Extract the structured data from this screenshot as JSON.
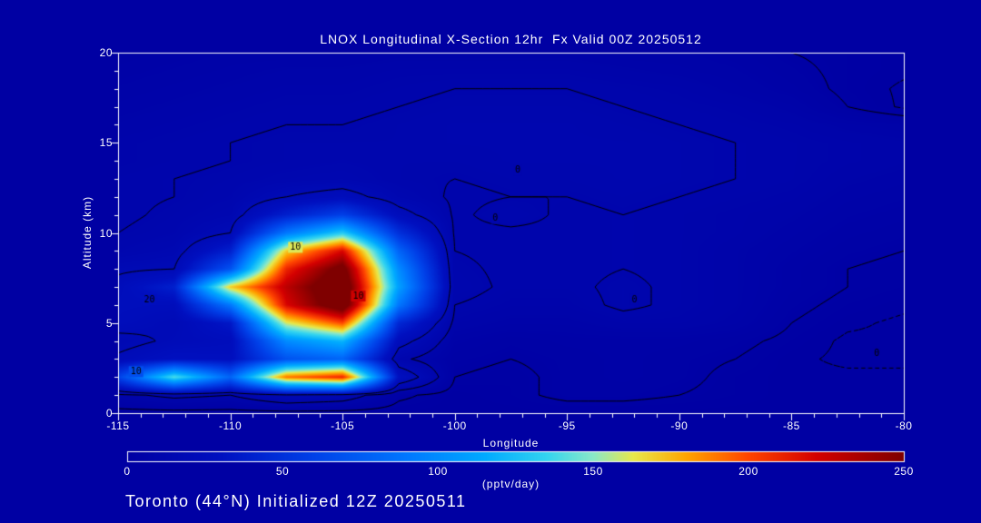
{
  "colors": {
    "background": "#0000a3",
    "frame": "#ffffff",
    "text": "#ffffff",
    "contour": "#000000"
  },
  "chart_data": {
    "type": "heatmap",
    "title": "LNOX Longitudinal X-Section 12hr  Fx Valid 00Z 20250512",
    "xlabel": "Longitude",
    "ylabel": "Altitude (km)",
    "caption": "Toronto (44°N) Initialized 12Z 20250511",
    "xlim": [
      -115,
      -80
    ],
    "ylim": [
      0,
      20
    ],
    "x_ticks": [
      -115,
      -110,
      -105,
      -100,
      -95,
      -90,
      -85,
      -80
    ],
    "y_ticks": [
      0,
      5,
      10,
      15,
      20
    ],
    "lon": [
      -115,
      -112.5,
      -110,
      -107.5,
      -105,
      -102.5,
      -100,
      -97.5,
      -95,
      -92.5,
      -90,
      -87.5,
      -85,
      -82.5,
      -80
    ],
    "alt": [
      0,
      1,
      2,
      3,
      4,
      5,
      6,
      7,
      8,
      9,
      10,
      11,
      12,
      13,
      14,
      15,
      16,
      17,
      18,
      19,
      20
    ],
    "values": [
      [
        0,
        0,
        0,
        0,
        0,
        0,
        0,
        0,
        0,
        0,
        0,
        0,
        0,
        0,
        0
      ],
      [
        8,
        12,
        10,
        18,
        15,
        3,
        0,
        1,
        3,
        3,
        2,
        1,
        0,
        0,
        0
      ],
      [
        60,
        140,
        80,
        190,
        210,
        30,
        2,
        1,
        3,
        4,
        3,
        1,
        0,
        0,
        0
      ],
      [
        22,
        30,
        28,
        70,
        80,
        12,
        3,
        2,
        3,
        4,
        3,
        2,
        0,
        -1,
        -1
      ],
      [
        16,
        22,
        25,
        100,
        120,
        25,
        5,
        3,
        4,
        4,
        4,
        3,
        1,
        -1,
        -1
      ],
      [
        25,
        20,
        35,
        160,
        200,
        45,
        8,
        6,
        6,
        8,
        8,
        6,
        2,
        0,
        -1
      ],
      [
        26,
        25,
        90,
        220,
        270,
        90,
        10,
        8,
        8,
        11,
        9,
        7,
        3,
        1,
        0
      ],
      [
        24,
        40,
        170,
        230,
        275,
        110,
        12,
        9,
        9,
        11,
        9,
        7,
        4,
        2,
        1
      ],
      [
        18,
        20,
        70,
        210,
        260,
        100,
        11,
        9,
        9,
        10,
        9,
        7,
        4,
        2,
        1
      ],
      [
        12,
        15,
        40,
        170,
        220,
        80,
        10,
        9,
        9,
        10,
        9,
        7,
        5,
        3,
        2
      ],
      [
        10,
        12,
        20,
        90,
        130,
        50,
        9,
        9,
        9,
        10,
        9,
        8,
        6,
        4,
        3
      ],
      [
        9,
        11,
        14,
        40,
        60,
        25,
        9,
        12,
        9,
        10,
        9,
        8,
        7,
        5,
        4
      ],
      [
        9,
        10,
        12,
        20,
        25,
        14,
        9,
        10,
        10,
        11,
        10,
        9,
        8,
        6,
        5
      ],
      [
        9,
        10,
        11,
        13,
        14,
        11,
        10,
        11,
        11,
        12,
        11,
        10,
        9,
        7,
        6
      ],
      [
        8,
        9,
        10,
        11,
        12,
        11,
        11,
        12,
        12,
        12,
        11,
        10,
        9,
        8,
        7
      ],
      [
        8,
        9,
        10,
        11,
        11,
        11,
        12,
        12,
        12,
        12,
        11,
        10,
        9,
        8,
        7
      ],
      [
        7,
        8,
        9,
        10,
        10,
        11,
        12,
        12,
        12,
        11,
        10,
        9,
        8,
        6,
        5
      ],
      [
        6,
        7,
        8,
        9,
        9,
        10,
        11,
        11,
        11,
        10,
        9,
        8,
        6,
        2,
        -1
      ],
      [
        5,
        6,
        7,
        8,
        8,
        9,
        10,
        10,
        10,
        9,
        8,
        6,
        4,
        1,
        -1
      ],
      [
        4,
        5,
        6,
        7,
        7,
        8,
        8,
        8,
        8,
        7,
        6,
        5,
        3,
        1,
        0
      ],
      [
        3,
        4,
        5,
        5,
        5,
        6,
        6,
        6,
        6,
        5,
        5,
        4,
        2,
        1,
        0
      ]
    ],
    "contours": {
      "solid_levels": [
        2,
        10,
        20
      ],
      "dashed_levels": [
        -0.5
      ],
      "labels": [
        {
          "text": "20",
          "lon": -113.6,
          "alt": 6.3
        },
        {
          "text": "10",
          "lon": -114.2,
          "alt": 2.3
        },
        {
          "text": "10",
          "lon": -107.1,
          "alt": 9.2
        },
        {
          "text": "10",
          "lon": -104.3,
          "alt": 6.5
        },
        {
          "text": "0",
          "lon": -97.2,
          "alt": 13.5
        },
        {
          "text": "0",
          "lon": -98.2,
          "alt": 10.8
        },
        {
          "text": "0",
          "lon": -92.0,
          "alt": 6.3
        },
        {
          "text": "0",
          "lon": -81.2,
          "alt": 3.3
        }
      ]
    },
    "colorbar": {
      "min": 0,
      "max": 250,
      "ticks": [
        0,
        50,
        100,
        150,
        200,
        250
      ],
      "units": "(pptv/day)",
      "stops": [
        [
          0,
          "#0000a3"
        ],
        [
          30,
          "#0010c0"
        ],
        [
          60,
          "#0040e8"
        ],
        [
          90,
          "#0077ff"
        ],
        [
          115,
          "#00aaff"
        ],
        [
          135,
          "#33d4f0"
        ],
        [
          150,
          "#8ae8c8"
        ],
        [
          163,
          "#e8e84a"
        ],
        [
          180,
          "#ffa500"
        ],
        [
          200,
          "#ff4500"
        ],
        [
          222,
          "#d40000"
        ],
        [
          250,
          "#7f0000"
        ]
      ]
    }
  }
}
